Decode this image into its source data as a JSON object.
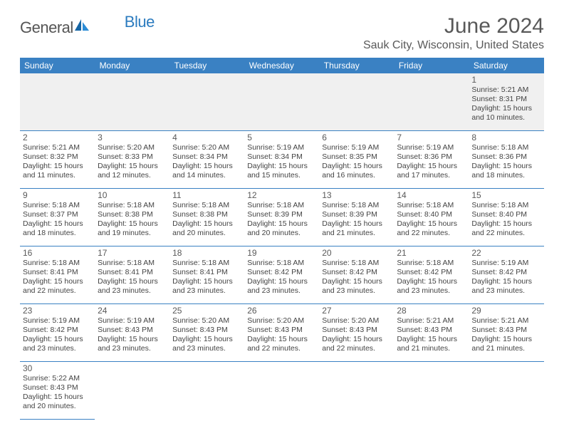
{
  "logo": {
    "general": "General",
    "blue": "Blue"
  },
  "title": "June 2024",
  "location": "Sauk City, Wisconsin, United States",
  "weekdays": [
    "Sunday",
    "Monday",
    "Tuesday",
    "Wednesday",
    "Thursday",
    "Friday",
    "Saturday"
  ],
  "colors": {
    "header_bg": "#3a81c3",
    "header_text": "#ffffff",
    "text": "#595959",
    "border": "#3a81c3",
    "firstrow_bg": "#f0f0f0"
  },
  "days": {
    "1": {
      "sunrise": "5:21 AM",
      "sunset": "8:31 PM",
      "daylight": "15 hours and 10 minutes."
    },
    "2": {
      "sunrise": "5:21 AM",
      "sunset": "8:32 PM",
      "daylight": "15 hours and 11 minutes."
    },
    "3": {
      "sunrise": "5:20 AM",
      "sunset": "8:33 PM",
      "daylight": "15 hours and 12 minutes."
    },
    "4": {
      "sunrise": "5:20 AM",
      "sunset": "8:34 PM",
      "daylight": "15 hours and 14 minutes."
    },
    "5": {
      "sunrise": "5:19 AM",
      "sunset": "8:34 PM",
      "daylight": "15 hours and 15 minutes."
    },
    "6": {
      "sunrise": "5:19 AM",
      "sunset": "8:35 PM",
      "daylight": "15 hours and 16 minutes."
    },
    "7": {
      "sunrise": "5:19 AM",
      "sunset": "8:36 PM",
      "daylight": "15 hours and 17 minutes."
    },
    "8": {
      "sunrise": "5:18 AM",
      "sunset": "8:36 PM",
      "daylight": "15 hours and 18 minutes."
    },
    "9": {
      "sunrise": "5:18 AM",
      "sunset": "8:37 PM",
      "daylight": "15 hours and 18 minutes."
    },
    "10": {
      "sunrise": "5:18 AM",
      "sunset": "8:38 PM",
      "daylight": "15 hours and 19 minutes."
    },
    "11": {
      "sunrise": "5:18 AM",
      "sunset": "8:38 PM",
      "daylight": "15 hours and 20 minutes."
    },
    "12": {
      "sunrise": "5:18 AM",
      "sunset": "8:39 PM",
      "daylight": "15 hours and 20 minutes."
    },
    "13": {
      "sunrise": "5:18 AM",
      "sunset": "8:39 PM",
      "daylight": "15 hours and 21 minutes."
    },
    "14": {
      "sunrise": "5:18 AM",
      "sunset": "8:40 PM",
      "daylight": "15 hours and 22 minutes."
    },
    "15": {
      "sunrise": "5:18 AM",
      "sunset": "8:40 PM",
      "daylight": "15 hours and 22 minutes."
    },
    "16": {
      "sunrise": "5:18 AM",
      "sunset": "8:41 PM",
      "daylight": "15 hours and 22 minutes."
    },
    "17": {
      "sunrise": "5:18 AM",
      "sunset": "8:41 PM",
      "daylight": "15 hours and 23 minutes."
    },
    "18": {
      "sunrise": "5:18 AM",
      "sunset": "8:41 PM",
      "daylight": "15 hours and 23 minutes."
    },
    "19": {
      "sunrise": "5:18 AM",
      "sunset": "8:42 PM",
      "daylight": "15 hours and 23 minutes."
    },
    "20": {
      "sunrise": "5:18 AM",
      "sunset": "8:42 PM",
      "daylight": "15 hours and 23 minutes."
    },
    "21": {
      "sunrise": "5:18 AM",
      "sunset": "8:42 PM",
      "daylight": "15 hours and 23 minutes."
    },
    "22": {
      "sunrise": "5:19 AM",
      "sunset": "8:42 PM",
      "daylight": "15 hours and 23 minutes."
    },
    "23": {
      "sunrise": "5:19 AM",
      "sunset": "8:42 PM",
      "daylight": "15 hours and 23 minutes."
    },
    "24": {
      "sunrise": "5:19 AM",
      "sunset": "8:43 PM",
      "daylight": "15 hours and 23 minutes."
    },
    "25": {
      "sunrise": "5:20 AM",
      "sunset": "8:43 PM",
      "daylight": "15 hours and 23 minutes."
    },
    "26": {
      "sunrise": "5:20 AM",
      "sunset": "8:43 PM",
      "daylight": "15 hours and 22 minutes."
    },
    "27": {
      "sunrise": "5:20 AM",
      "sunset": "8:43 PM",
      "daylight": "15 hours and 22 minutes."
    },
    "28": {
      "sunrise": "5:21 AM",
      "sunset": "8:43 PM",
      "daylight": "15 hours and 21 minutes."
    },
    "29": {
      "sunrise": "5:21 AM",
      "sunset": "8:43 PM",
      "daylight": "15 hours and 21 minutes."
    },
    "30": {
      "sunrise": "5:22 AM",
      "sunset": "8:43 PM",
      "daylight": "15 hours and 20 minutes."
    }
  },
  "labels": {
    "sunrise": "Sunrise: ",
    "sunset": "Sunset: ",
    "daylight": "Daylight: "
  },
  "grid": [
    [
      null,
      null,
      null,
      null,
      null,
      null,
      "1"
    ],
    [
      "2",
      "3",
      "4",
      "5",
      "6",
      "7",
      "8"
    ],
    [
      "9",
      "10",
      "11",
      "12",
      "13",
      "14",
      "15"
    ],
    [
      "16",
      "17",
      "18",
      "19",
      "20",
      "21",
      "22"
    ],
    [
      "23",
      "24",
      "25",
      "26",
      "27",
      "28",
      "29"
    ],
    [
      "30",
      null,
      null,
      null,
      null,
      null,
      null
    ]
  ]
}
